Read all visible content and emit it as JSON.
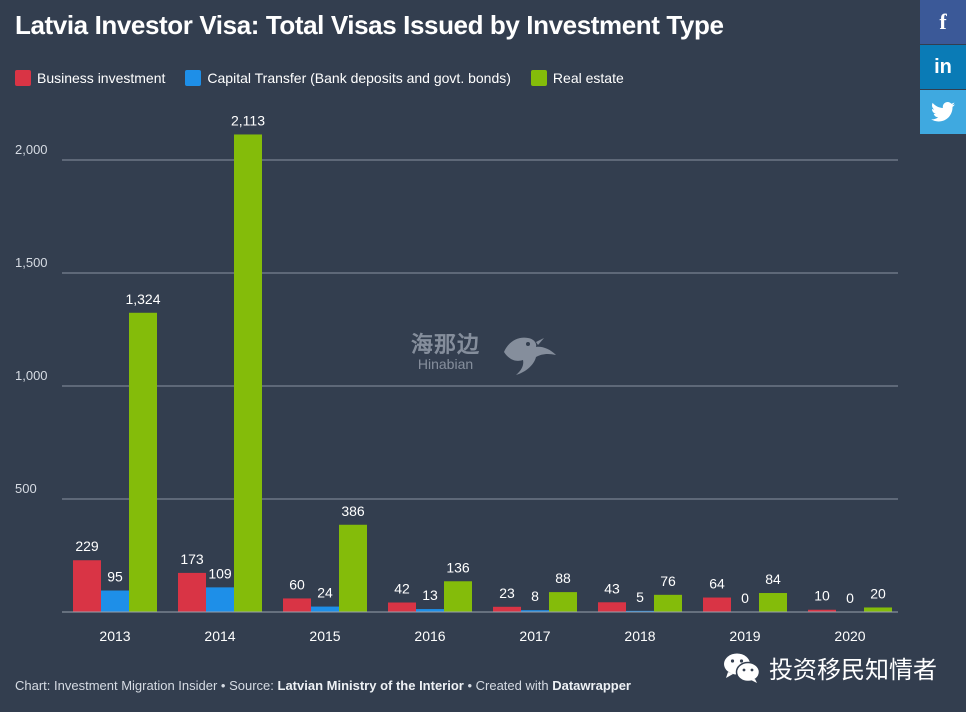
{
  "chart_data": {
    "type": "bar",
    "title": "Latvia Investor Visa: Total Visas Issued by Investment Type",
    "categories": [
      "2013",
      "2014",
      "2015",
      "2016",
      "2017",
      "2018",
      "2019",
      "2020"
    ],
    "series": [
      {
        "name": "Business investment",
        "color": "#d93445",
        "values": [
          229,
          173,
          60,
          42,
          23,
          43,
          64,
          10
        ]
      },
      {
        "name": "Capital Transfer (Bank deposits and govt. bonds)",
        "color": "#1e8fe8",
        "values": [
          95,
          109,
          24,
          13,
          8,
          5,
          0,
          0
        ]
      },
      {
        "name": "Real estate",
        "color": "#84bc0a",
        "values": [
          1324,
          2113,
          386,
          136,
          88,
          76,
          84,
          20
        ]
      }
    ],
    "data_labels": [
      [
        "229",
        "173",
        "60",
        "42",
        "23",
        "43",
        "64",
        "10"
      ],
      [
        "95",
        "109",
        "24",
        "13",
        "8",
        "5",
        "0",
        "0"
      ],
      [
        "1,324",
        "2,113",
        "386",
        "136",
        "88",
        "76",
        "84",
        "20"
      ]
    ],
    "yticks": [
      500,
      1000,
      1500,
      2000
    ],
    "ytick_labels": [
      "500",
      "1,000",
      "1,500",
      "2,000"
    ],
    "ylim": [
      0,
      2200
    ],
    "xlabel": "",
    "ylabel": "",
    "grid": true,
    "legend": "top-left"
  },
  "footer": {
    "chart_prefix": "Chart: Investment Migration Insider • Source: ",
    "source": "Latvian Ministry of the Interior",
    "created_prefix": " • Created with ",
    "tool": "Datawrapper"
  },
  "social": {
    "facebook": "f",
    "linkedin": "in",
    "twitter_icon": "twitter-bird",
    "facebook_color": "#3b5998",
    "linkedin_color": "#0a7bb6",
    "twitter_color": "#3fa9e0"
  },
  "watermark": {
    "cn": "海那边",
    "en": "Hinabian"
  },
  "wechat": {
    "label": "投资移民知情者"
  }
}
